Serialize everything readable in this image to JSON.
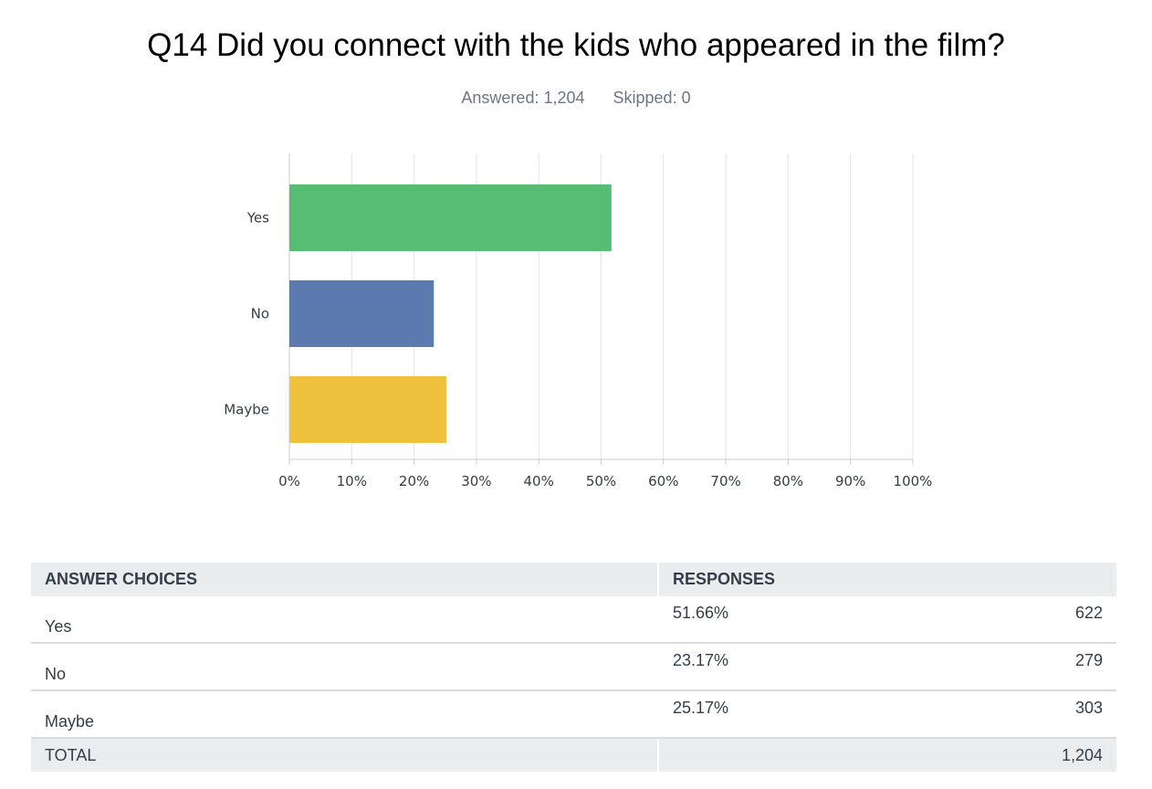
{
  "header": {
    "title": "Q14 Did you connect with the kids who appeared in the film?",
    "answered": "Answered: 1,204",
    "skipped": "Skipped: 0"
  },
  "chart_data": {
    "type": "bar",
    "orientation": "horizontal",
    "categories": [
      "Yes",
      "No",
      "Maybe"
    ],
    "values": [
      51.66,
      23.17,
      25.17
    ],
    "colors": [
      "#57bd73",
      "#5b7bb0",
      "#efc13d"
    ],
    "xlim": [
      0,
      100
    ],
    "xticks": [
      "0%",
      "10%",
      "20%",
      "30%",
      "40%",
      "50%",
      "60%",
      "70%",
      "80%",
      "90%",
      "100%"
    ],
    "grid": true
  },
  "table": {
    "headers": [
      "ANSWER CHOICES",
      "RESPONSES"
    ],
    "rows": [
      {
        "choice": "Yes",
        "percent": "51.66%",
        "count": "622"
      },
      {
        "choice": "No",
        "percent": "23.17%",
        "count": "279"
      },
      {
        "choice": "Maybe",
        "percent": "25.17%",
        "count": "303"
      }
    ],
    "total_label": "TOTAL",
    "total_count": "1,204"
  }
}
